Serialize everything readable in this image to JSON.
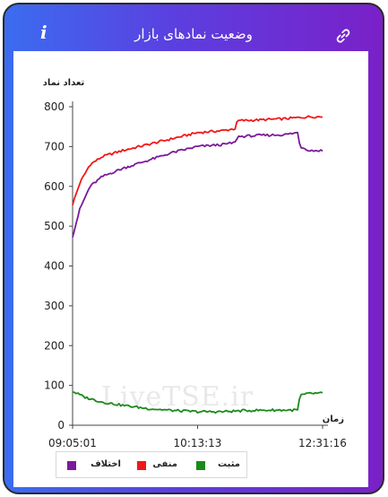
{
  "header": {
    "title": "وضعیت نمادهای بازار",
    "info_icon": "i"
  },
  "watermark": "LiveTSE.ir",
  "colors": {
    "header_gradient_start": "#3b6cf0",
    "header_gradient_end": "#7a20c8",
    "positive": "#1a8a1a",
    "negative": "#f01818",
    "difference": "#7a1a9a"
  },
  "chart_data": {
    "type": "line",
    "ylabel": "تعداد نماد",
    "xlabel": "زمان",
    "ylim": [
      0,
      800
    ],
    "yticks": [
      0,
      100,
      200,
      300,
      400,
      500,
      600,
      700,
      800
    ],
    "xticks": [
      "09:05:01",
      "10:13:13",
      "12:31:16"
    ],
    "xlim": [
      0,
      1
    ],
    "grid": false,
    "legend_position": "bottom-left",
    "series": [
      {
        "name": "منفی",
        "color": "#f01818",
        "x": [
          0,
          0.03,
          0.07,
          0.12,
          0.2,
          0.3,
          0.4,
          0.5,
          0.6,
          0.65,
          0.66,
          0.75,
          0.85,
          0.95,
          1
        ],
        "y": [
          555,
          610,
          655,
          675,
          690,
          705,
          720,
          735,
          740,
          745,
          765,
          767,
          770,
          775,
          775
        ]
      },
      {
        "name": "اختلاف",
        "color": "#7a1a9a",
        "x": [
          0,
          0.03,
          0.07,
          0.12,
          0.2,
          0.3,
          0.4,
          0.5,
          0.6,
          0.65,
          0.66,
          0.75,
          0.85,
          0.9,
          0.91,
          0.95,
          1
        ],
        "y": [
          475,
          545,
          600,
          625,
          645,
          665,
          685,
          700,
          705,
          710,
          725,
          728,
          730,
          735,
          700,
          690,
          690
        ]
      },
      {
        "name": "مثبت",
        "color": "#1a8a1a",
        "x": [
          0,
          0.05,
          0.12,
          0.2,
          0.3,
          0.4,
          0.5,
          0.6,
          0.7,
          0.8,
          0.9,
          0.91,
          0.95,
          1
        ],
        "y": [
          85,
          70,
          58,
          50,
          42,
          37,
          34,
          34,
          37,
          38,
          38,
          75,
          80,
          80
        ]
      }
    ],
    "legend": [
      {
        "name": "مثبت",
        "color": "#1a8a1a"
      },
      {
        "name": "منفی",
        "color": "#f01818"
      },
      {
        "name": "اختلاف",
        "color": "#7a1a9a"
      }
    ]
  }
}
